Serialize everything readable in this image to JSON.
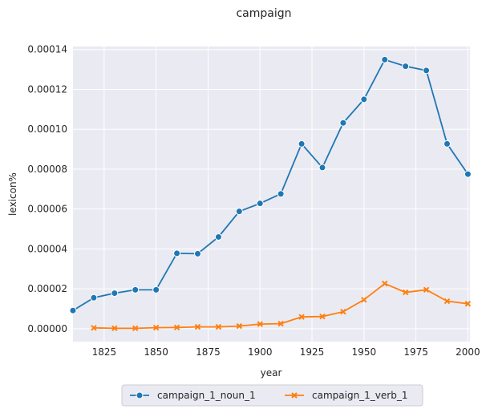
{
  "chart_data": {
    "type": "line",
    "title": "campaign",
    "xlabel": "year",
    "ylabel": "lexicon%",
    "xlim": [
      1810,
      2001
    ],
    "ylim": [
      -6.5e-06,
      0.0001415
    ],
    "xticks": [
      1825,
      1850,
      1875,
      1900,
      1925,
      1950,
      1975,
      2000
    ],
    "xtick_labels": [
      "1825",
      "1850",
      "1875",
      "1900",
      "1925",
      "1950",
      "1975",
      "2000"
    ],
    "yticks": [
      0,
      2e-05,
      4e-05,
      6e-05,
      8e-05,
      0.0001,
      0.00012,
      0.00014
    ],
    "ytick_labels": [
      "0.00000",
      "0.00002",
      "0.00004",
      "0.00006",
      "0.00008",
      "0.00010",
      "0.00012",
      "0.00014"
    ],
    "grid": true,
    "background": "#eaeaf2",
    "legend_position": "bottom-center",
    "series": [
      {
        "name": "campaign_1_noun_1",
        "color": "#1f77b4",
        "marker": "circle",
        "x": [
          1810,
          1820,
          1830,
          1840,
          1850,
          1860,
          1870,
          1880,
          1890,
          1900,
          1910,
          1920,
          1930,
          1940,
          1950,
          1960,
          1970,
          1980,
          1990,
          2000
        ],
        "y": [
          9.1e-06,
          1.55e-05,
          1.78e-05,
          1.95e-05,
          1.95e-05,
          3.78e-05,
          3.76e-05,
          4.6e-05,
          5.88e-05,
          6.28e-05,
          6.76e-05,
          9.27e-05,
          8.08e-05,
          0.0001032,
          0.000115,
          0.0001349,
          0.0001316,
          0.0001295,
          9.27e-05,
          7.75e-05
        ]
      },
      {
        "name": "campaign_1_verb_1",
        "color": "#ff7f0e",
        "marker": "x",
        "x": [
          1820,
          1830,
          1840,
          1850,
          1860,
          1870,
          1880,
          1890,
          1900,
          1910,
          1920,
          1930,
          1940,
          1950,
          1960,
          1970,
          1980,
          1990,
          2000
        ],
        "y": [
          4e-07,
          2e-07,
          2e-07,
          5e-07,
          6e-07,
          9e-07,
          9e-07,
          1.3e-06,
          2.3e-06,
          2.5e-06,
          5.9e-06,
          6.1e-06,
          8.5e-06,
          1.45e-05,
          2.26e-05,
          1.82e-05,
          1.95e-05,
          1.38e-05,
          1.25e-05
        ]
      }
    ]
  }
}
